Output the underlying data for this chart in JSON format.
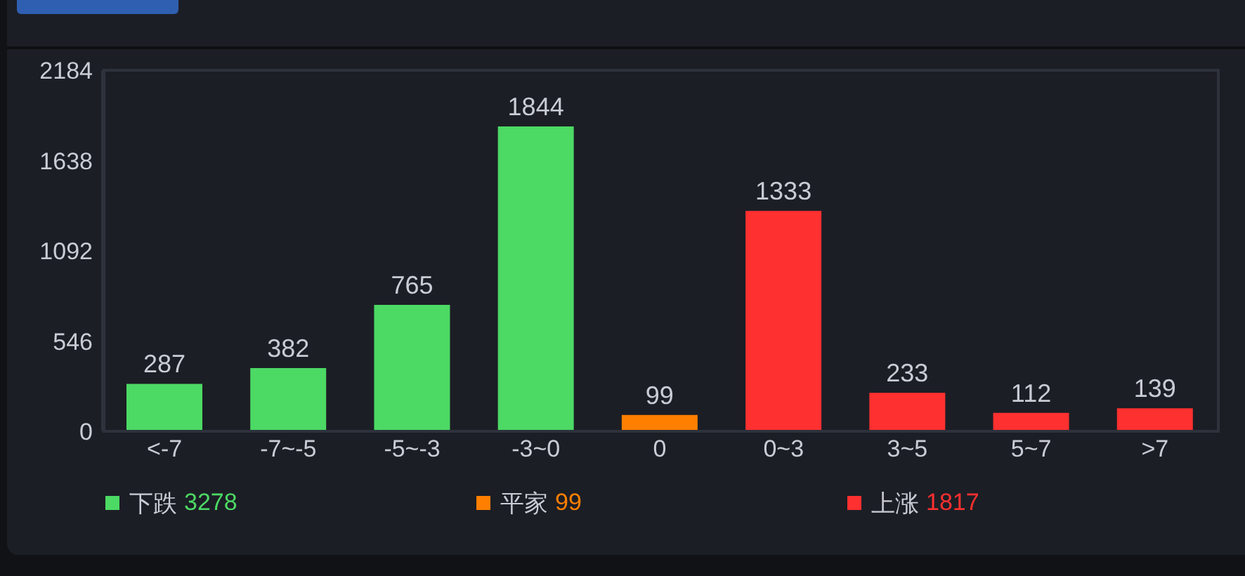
{
  "chart_data": {
    "type": "bar",
    "categories": [
      "<-7",
      "-7~-5",
      "-5~-3",
      "-3~0",
      "0",
      "0~3",
      "3~5",
      "5~7",
      ">7"
    ],
    "series": [
      {
        "name": "下跌",
        "color": "#4cd964",
        "values": [
          287,
          382,
          765,
          1844,
          null,
          null,
          null,
          null,
          null
        ]
      },
      {
        "name": "平家",
        "color": "#ff7f00",
        "values": [
          null,
          null,
          null,
          null,
          99,
          null,
          null,
          null,
          null
        ]
      },
      {
        "name": "上涨",
        "color": "#ff3030",
        "values": [
          null,
          null,
          null,
          null,
          null,
          1333,
          233,
          112,
          139
        ]
      }
    ],
    "stacked": true,
    "ylim": [
      0,
      2184
    ],
    "yticks": [
      0,
      546,
      1092,
      1638,
      2184
    ],
    "data_labels": true,
    "legend": "bottom",
    "annotations": [
      "3278",
      "99",
      "1817"
    ]
  }
}
